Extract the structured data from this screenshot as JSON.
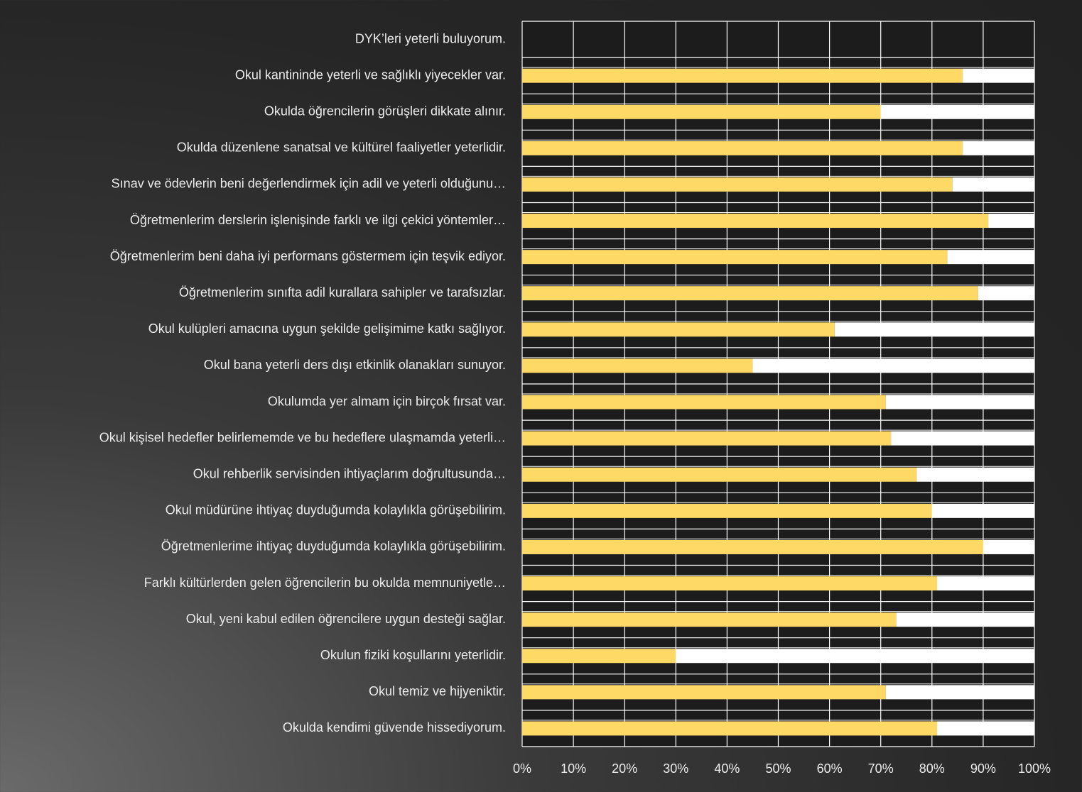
{
  "chart_data": {
    "type": "bar",
    "orientation": "horizontal",
    "stacked": true,
    "categories": [
      "DYK’leri yeterli buluyorum.",
      "Okul kantininde yeterli ve sağlıklı yiyecekler var.",
      "Okulda öğrencilerin görüşleri dikkate alınır.",
      "Okulda düzenlene sanatsal ve kültürel faaliyetler yeterlidir.",
      "Sınav ve ödevlerin beni değerlendirmek için adil ve yeterli olduğunu…",
      "Öğretmenlerim derslerin işlenişinde farklı ve ilgi çekici yöntemler…",
      "Öğretmenlerim beni daha iyi performans göstermem için teşvik ediyor.",
      "Öğretmenlerim sınıfta adil kurallara sahipler ve tarafsızlar.",
      "Okul kulüpleri amacına uygun şekilde gelişimime katkı sağlıyor.",
      "Okul bana yeterli ders dışı etkinlik olanakları sunuyor.",
      "Okulumda yer almam için birçok fırsat var.",
      "Okul kişisel hedefler belirlememde ve bu hedeflere ulaşmamda yeterli…",
      "Okul rehberlik servisinden ihtiyaçlarım doğrultusunda…",
      "Okul müdürüne ihtiyaç duyduğumda kolaylıkla görüşebilirim.",
      "Öğretmenlerime ihtiyaç duyduğumda kolaylıkla görüşebilirim.",
      "Farklı kültürlerden gelen öğrencilerin bu okulda memnuniyetle…",
      "Okul, yeni kabul edilen öğrencilere uygun desteği sağlar.",
      "Okulun fiziki koşullarını yeterlidir.",
      "Okul temiz ve hijyeniktir.",
      "Okulda kendimi güvende hissediyorum."
    ],
    "series": [
      {
        "color": "#ffd966",
        "values": [
          null,
          86,
          70,
          86,
          84,
          91,
          83,
          89,
          61,
          45,
          71,
          72,
          77,
          80,
          90,
          81,
          73,
          30,
          71,
          81
        ]
      },
      {
        "color": "#ffffff",
        "values": [
          null,
          14,
          30,
          14,
          16,
          9,
          17,
          11,
          39,
          55,
          29,
          28,
          23,
          20,
          10,
          19,
          27,
          70,
          29,
          19
        ]
      }
    ],
    "xlim": [
      0,
      100
    ],
    "xticks": [
      {
        "value": 0,
        "label": "0%"
      },
      {
        "value": 10,
        "label": "10%"
      },
      {
        "value": 20,
        "label": "20%"
      },
      {
        "value": 30,
        "label": "30%"
      },
      {
        "value": 40,
        "label": "40%"
      },
      {
        "value": 50,
        "label": "50%"
      },
      {
        "value": 60,
        "label": "60%"
      },
      {
        "value": 70,
        "label": "70%"
      },
      {
        "value": 80,
        "label": "80%"
      },
      {
        "value": 90,
        "label": "90%"
      },
      {
        "value": 100,
        "label": "100%"
      }
    ],
    "grid": true
  }
}
